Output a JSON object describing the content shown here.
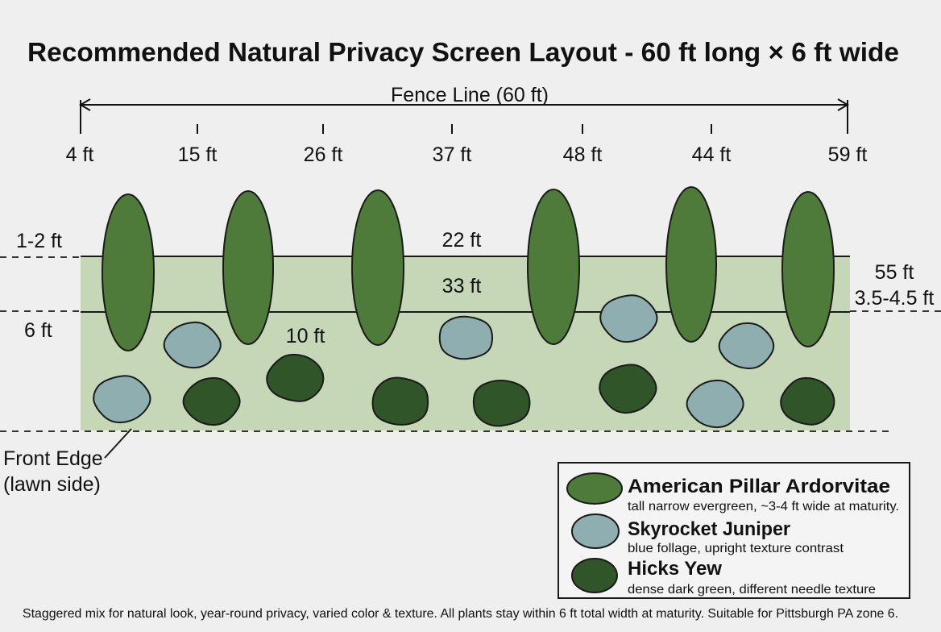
{
  "title": "Recommended Natural Privacy Screen Layout - 60 ft long × 6 ft wide",
  "fence_line_label": "Fence Line (60 ft)",
  "ticks": [
    "4 ft",
    "15 ft",
    "26 ft",
    "37 ft",
    "48 ft",
    "44 ft",
    "59 ft"
  ],
  "dimension_labels": {
    "left_top": "1-2 ft",
    "left_mid": "6 ft",
    "center_top": "22 ft",
    "center_mid": "33 ft",
    "center_low": "10 ft",
    "right_top": "55 ft",
    "right_mid": "3.5-4.5 ft"
  },
  "front_edge_label": [
    "Front Edge",
    "(lawn side)"
  ],
  "legend": [
    {
      "key": "arborvitae",
      "name": "American Pillar Ardorvitae",
      "desc": "tall narrow evergreen, ~3-4 ft wide at maturity.",
      "color": "#4f7b3a"
    },
    {
      "key": "juniper",
      "name": "Skyrocket Juniper",
      "desc": "blue follage, upright texture contrast",
      "color": "#8faeb0"
    },
    {
      "key": "yew",
      "name": "Hicks Yew",
      "desc": "dense dark green, different needle texture",
      "color": "#2f5528"
    }
  ],
  "footer": "Staggered mix for natural look, year-round privacy, varied color & texture. All plants stay within 6 ft total width at maturity. Suitable for Pittsburgh PA zone 6.",
  "colors": {
    "bed": "#c6d7b8",
    "arborvitae": "#4f7b3a",
    "juniper": "#8faeb0",
    "yew": "#2f5528",
    "outline": "#1a1a1a"
  }
}
